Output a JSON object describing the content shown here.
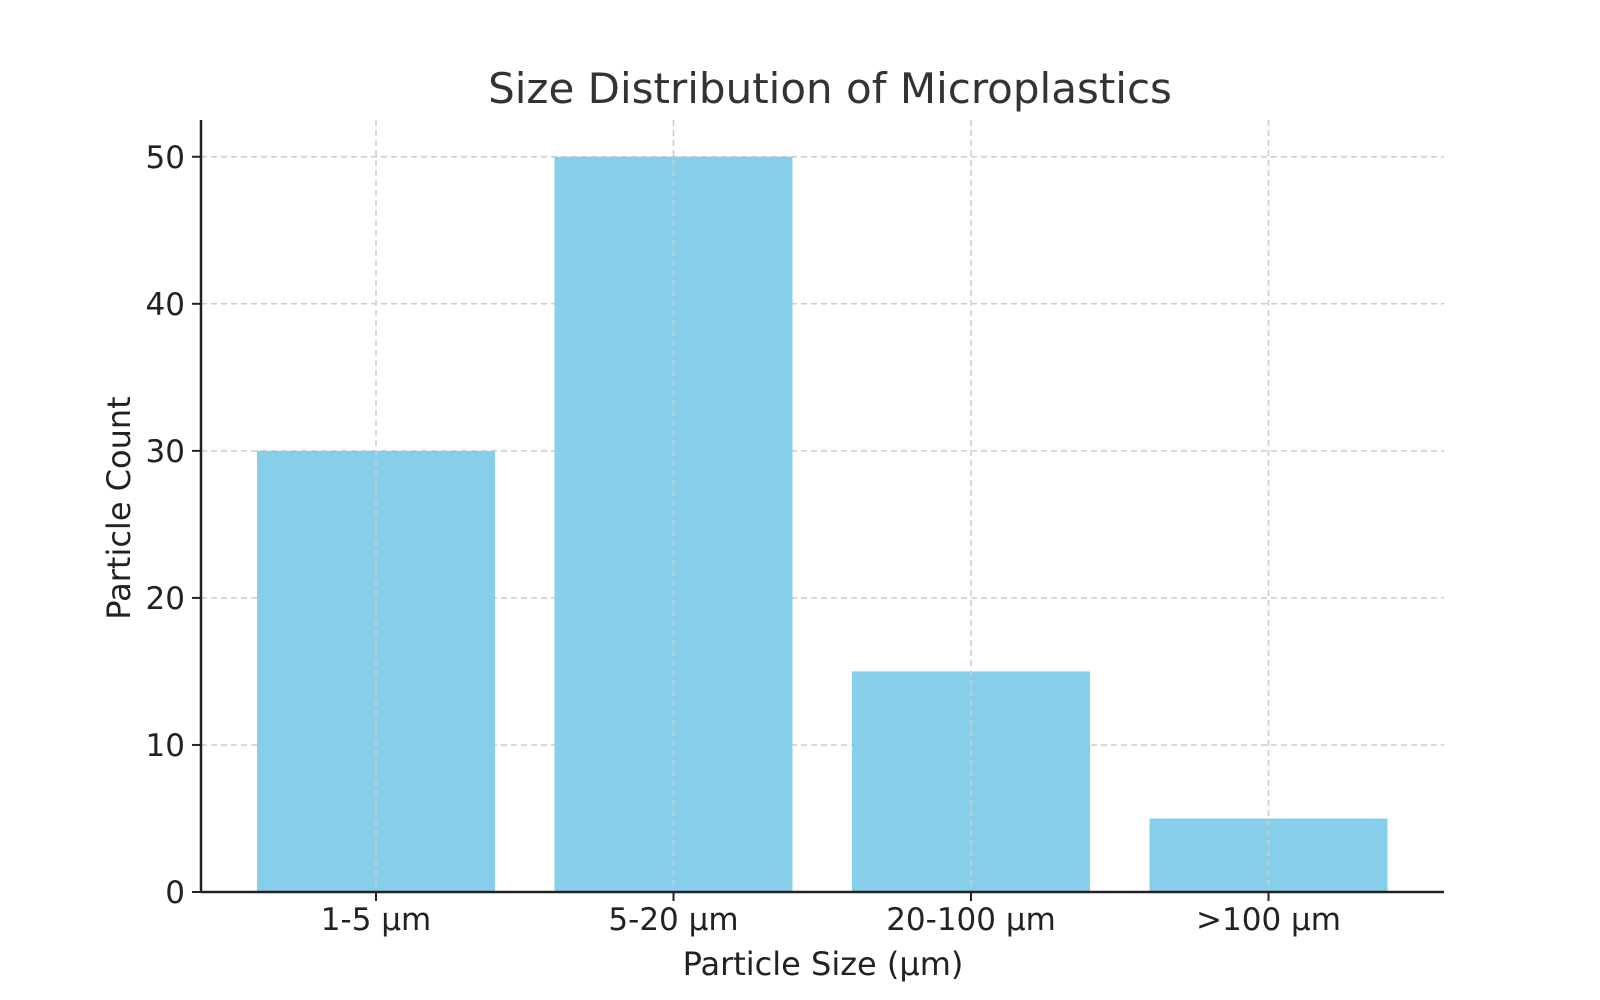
{
  "chart_data": {
    "type": "bar",
    "title": "Size Distribution of Microplastics",
    "xlabel": "Particle Size (µm)",
    "ylabel": "Particle Count",
    "categories": [
      "1-5 µm",
      "5-20 µm",
      "20-100 µm",
      ">100 µm"
    ],
    "values": [
      30,
      50,
      15,
      5
    ],
    "ylim": [
      0,
      52.5
    ],
    "yticks": [
      0,
      10,
      20,
      30,
      40,
      50
    ],
    "grid": true,
    "bar_color": "#87CEEB",
    "grid_color": "#cccccc",
    "axis_color": "#222222"
  }
}
